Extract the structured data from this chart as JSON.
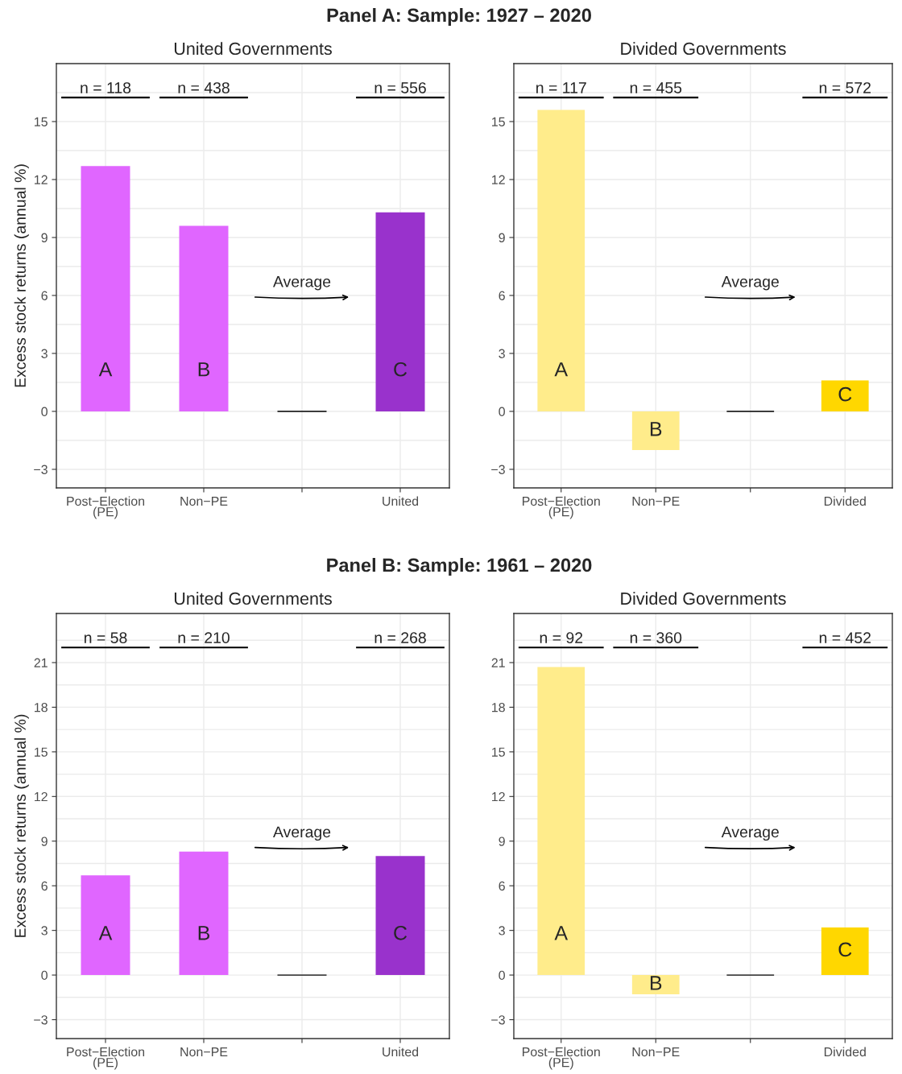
{
  "chart_data": [
    {
      "type": "bar",
      "title": "United Governments",
      "ylabel": "Excess stock returns (annual %)",
      "categories": [
        "Post−Election\n(PE)",
        "Non−PE",
        null,
        "United"
      ],
      "values": [
        12.7,
        9.6,
        0,
        10.3
      ],
      "colors": [
        "#e066ff",
        "#e066ff",
        "#000000",
        "#9932cc"
      ],
      "value_labels": [
        "A",
        "B",
        null,
        "C"
      ],
      "ylim": [
        -3.96,
        18
      ],
      "yticks": [
        -3,
        0,
        3,
        6,
        9,
        12,
        15
      ],
      "grid": true,
      "annotations": [
        "Panel A: Sample: 1927 – 2020",
        "n = 118",
        "n = 438",
        "n = 556",
        "Average"
      ]
    },
    {
      "type": "bar",
      "title": "Divided Governments",
      "categories": [
        "Post−Election\n(PE)",
        "Non−PE",
        null,
        "Divided"
      ],
      "values": [
        15.6,
        -2.0,
        0,
        1.6
      ],
      "colors": [
        "#ffec8b",
        "#ffec8b",
        "#000000",
        "#ffd700"
      ],
      "value_labels": [
        "A",
        "B",
        null,
        "C"
      ],
      "ylim": [
        -3.96,
        18
      ],
      "yticks": [
        -3,
        0,
        3,
        6,
        9,
        12,
        15
      ],
      "grid": true,
      "annotations": [
        "n = 117",
        "n = 455",
        "n = 572",
        "Average"
      ]
    },
    {
      "type": "bar",
      "title": "United Governments",
      "ylabel": "Excess stock returns (annual %)",
      "categories": [
        "Post−Election\n(PE)",
        "Non−PE",
        null,
        "United"
      ],
      "values": [
        6.7,
        8.3,
        0,
        8.0
      ],
      "colors": [
        "#e066ff",
        "#e066ff",
        "#000000",
        "#9932cc"
      ],
      "value_labels": [
        "A",
        "B",
        null,
        "C"
      ],
      "ylim": [
        -4.27,
        24.3
      ],
      "yticks": [
        -3,
        0,
        3,
        6,
        9,
        12,
        15,
        18,
        21
      ],
      "grid": true,
      "annotations": [
        "Panel B: Sample: 1961 – 2020",
        "n = 58",
        "n = 210",
        "n = 268",
        "Average"
      ]
    },
    {
      "type": "bar",
      "title": "Divided Governments",
      "categories": [
        "Post−Election\n(PE)",
        "Non−PE",
        null,
        "Divided"
      ],
      "values": [
        20.7,
        -1.3,
        0,
        3.2
      ],
      "colors": [
        "#ffec8b",
        "#ffec8b",
        "#000000",
        "#ffd700"
      ],
      "value_labels": [
        "A",
        "B",
        null,
        "C"
      ],
      "ylim": [
        -4.27,
        24.3
      ],
      "yticks": [
        -3,
        0,
        3,
        6,
        9,
        12,
        15,
        18,
        21
      ],
      "grid": true,
      "annotations": [
        "n = 92",
        "n = 360",
        "n = 452",
        "Average"
      ]
    }
  ]
}
